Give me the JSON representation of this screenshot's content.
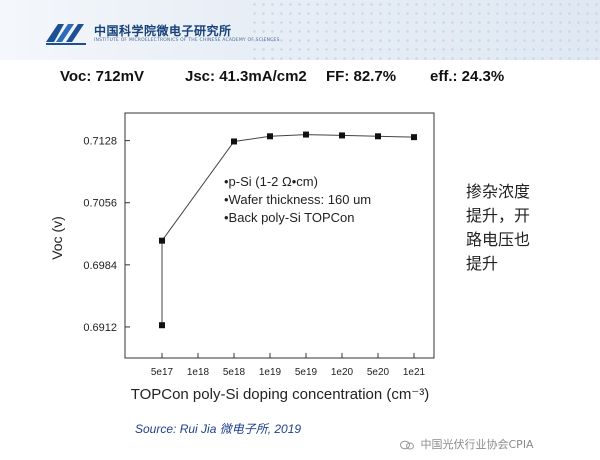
{
  "header": {
    "org_name": "中国科学院微电子研究所",
    "org_subtitle": "INSTITUTE OF MICROELECTRONICS OF THE CHINESE ACADEMY OF SCIENCES"
  },
  "metrics": [
    {
      "label": "Voc:",
      "value": "712mV"
    },
    {
      "label": "Jsc:",
      "value": "41.3mA/cm2"
    },
    {
      "label": "FF:",
      "value": "82.7%"
    },
    {
      "label": "eff.:",
      "value": "24.3%"
    }
  ],
  "chart_data": {
    "type": "line",
    "xlabel": "TOPCon poly-Si doping concentration (cm⁻³)",
    "ylabel": "Voc (v)",
    "x_scale": "log",
    "categories": [
      "5e17",
      "1e18",
      "5e18",
      "1e19",
      "5e19",
      "1e20",
      "5e20",
      "1e21"
    ],
    "y_ticks": [
      "0.6912",
      "0.6984",
      "0.7056",
      "0.7128"
    ],
    "ylim": [
      0.6876,
      0.716
    ],
    "series": [
      {
        "points": [
          {
            "x": "5e17",
            "y": 0.6914
          },
          {
            "x": "5e17",
            "y": 0.7012
          },
          {
            "x": "5e18",
            "y": 0.7127
          },
          {
            "x": "1e19",
            "y": 0.7133
          },
          {
            "x": "5e19",
            "y": 0.7135
          },
          {
            "x": "1e20",
            "y": 0.7134
          },
          {
            "x": "5e20",
            "y": 0.7133
          },
          {
            "x": "1e21",
            "y": 0.7132
          }
        ]
      }
    ],
    "annotation_lines": [
      "•p-Si (1-2 Ω•cm)",
      "•Wafer thickness: 160 um",
      "•Back poly-Si TOPCon"
    ],
    "grid": false,
    "marker": "square",
    "color": "#333333"
  },
  "side_note": [
    "掺杂浓度",
    "提升，开",
    "路电压也",
    "提升"
  ],
  "source": "Source: Rui Jia 微电子所, 2019",
  "watermark": "中国光伏行业协会CPIA"
}
